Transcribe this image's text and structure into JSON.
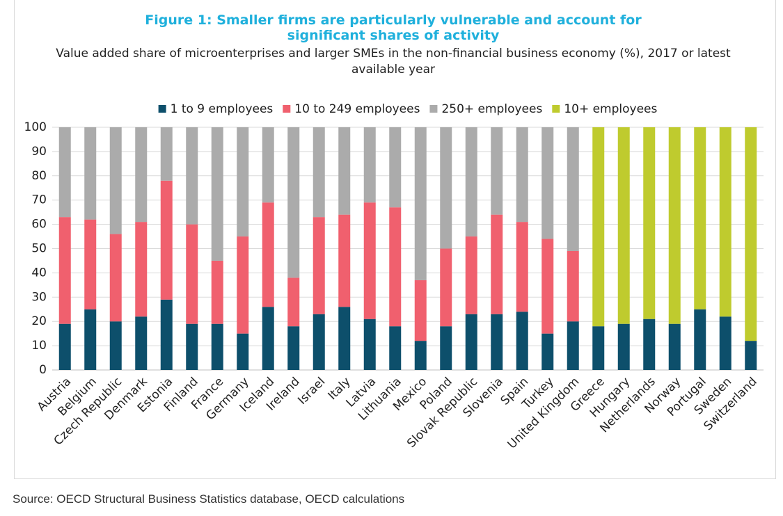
{
  "chart_data": {
    "type": "stacked_bar",
    "title": "Figure 1: Smaller firms are particularly vulnerable and account for significant shares of activity",
    "subtitle": "Value added share of microenterprises and larger SMEs in the non-financial business economy (%), 2017 or latest available year",
    "source": "Source: OECD Structural Business Statistics database, OECD calculations",
    "categories": [
      "Austria",
      "Belgium",
      "Czech Republic",
      "Denmark",
      "Estonia",
      "Finland",
      "France",
      "Germany",
      "Iceland",
      "Ireland",
      "Israel",
      "Italy",
      "Latvia",
      "Lithuania",
      "Mexico",
      "Poland",
      "Slovak Republic",
      "Slovenia",
      "Spain",
      "Turkey",
      "United Kingdom",
      "Greece",
      "Hungary",
      "Netherlands",
      "Norway",
      "Portugal",
      "Sweden",
      "Switzerland"
    ],
    "series": [
      {
        "name": "1 to 9 employees",
        "color": "#0d4f6b",
        "values": [
          19,
          25,
          20,
          22,
          29,
          19,
          19,
          15,
          26,
          18,
          23,
          26,
          21,
          18,
          12,
          18,
          23,
          23,
          24,
          15,
          20,
          18,
          19,
          21,
          19,
          25,
          22,
          12
        ]
      },
      {
        "name": "10 to 249 employees",
        "color": "#f0606e",
        "values": [
          44,
          37,
          36,
          39,
          49,
          41,
          26,
          40,
          43,
          20,
          40,
          38,
          48,
          49,
          25,
          32,
          32,
          41,
          37,
          39,
          29,
          null,
          null,
          null,
          null,
          null,
          null,
          null
        ]
      },
      {
        "name": "250+ employees",
        "color": "#ababab",
        "values": [
          37,
          38,
          44,
          39,
          22,
          40,
          55,
          45,
          31,
          62,
          37,
          36,
          31,
          33,
          63,
          50,
          45,
          36,
          39,
          46,
          51,
          null,
          null,
          null,
          null,
          null,
          null,
          null
        ]
      },
      {
        "name": "10+ employees",
        "color": "#bfcb2e",
        "values": [
          null,
          null,
          null,
          null,
          null,
          null,
          null,
          null,
          null,
          null,
          null,
          null,
          null,
          null,
          null,
          null,
          null,
          null,
          null,
          null,
          null,
          82,
          81,
          79,
          81,
          75,
          78,
          88
        ]
      }
    ],
    "ylim": [
      0,
      100
    ],
    "yticks": [
      0,
      10,
      20,
      30,
      40,
      50,
      60,
      70,
      80,
      90,
      100
    ],
    "grid": true,
    "legend": "top"
  }
}
